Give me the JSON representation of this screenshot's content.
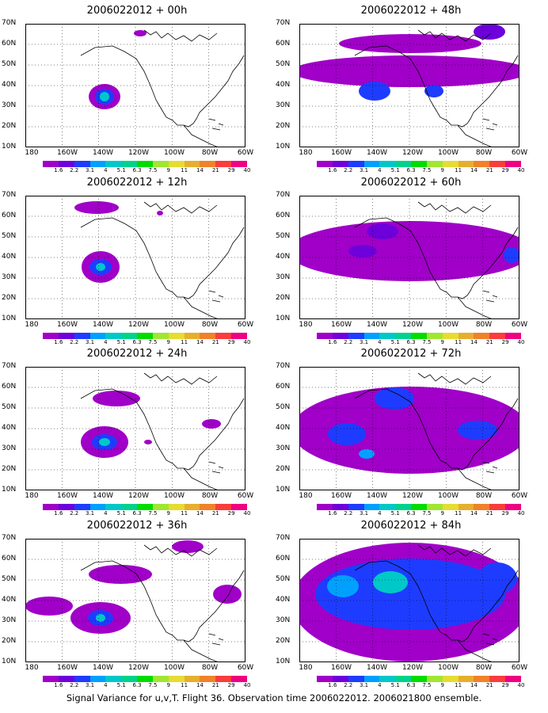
{
  "axes": {
    "y_labels": [
      "70N",
      "60N",
      "50N",
      "40N",
      "30N",
      "20N",
      "10N"
    ],
    "x_labels": [
      "180",
      "160W",
      "140W",
      "120W",
      "100W",
      "80W",
      "60W"
    ]
  },
  "colorbar": {
    "labels": [
      "1.6",
      "2.2",
      "3.1",
      "4",
      "5.1",
      "6.3",
      "7.5",
      "9",
      "11",
      "14",
      "21",
      "29",
      "40"
    ],
    "colors": [
      "#a000c8",
      "#6e00dc",
      "#1e3cff",
      "#00a0ff",
      "#00c8c8",
      "#00d28c",
      "#00dc00",
      "#a0e632",
      "#e6dc32",
      "#e6af2d",
      "#f08228",
      "#fa3c3c",
      "#f00082"
    ]
  },
  "panels": [
    {
      "title": "2006022012 + 00h"
    },
    {
      "title": "2006022012 + 48h"
    },
    {
      "title": "2006022012 + 12h"
    },
    {
      "title": "2006022012 + 60h"
    },
    {
      "title": "2006022012 + 24h"
    },
    {
      "title": "2006022012 + 72h"
    },
    {
      "title": "2006022012 + 36h"
    },
    {
      "title": "2006022012 + 84h"
    }
  ],
  "footer": "Signal Variance for u,v,T. Flight 36. Observation time 2006022012. 2006021800 ensemble."
}
